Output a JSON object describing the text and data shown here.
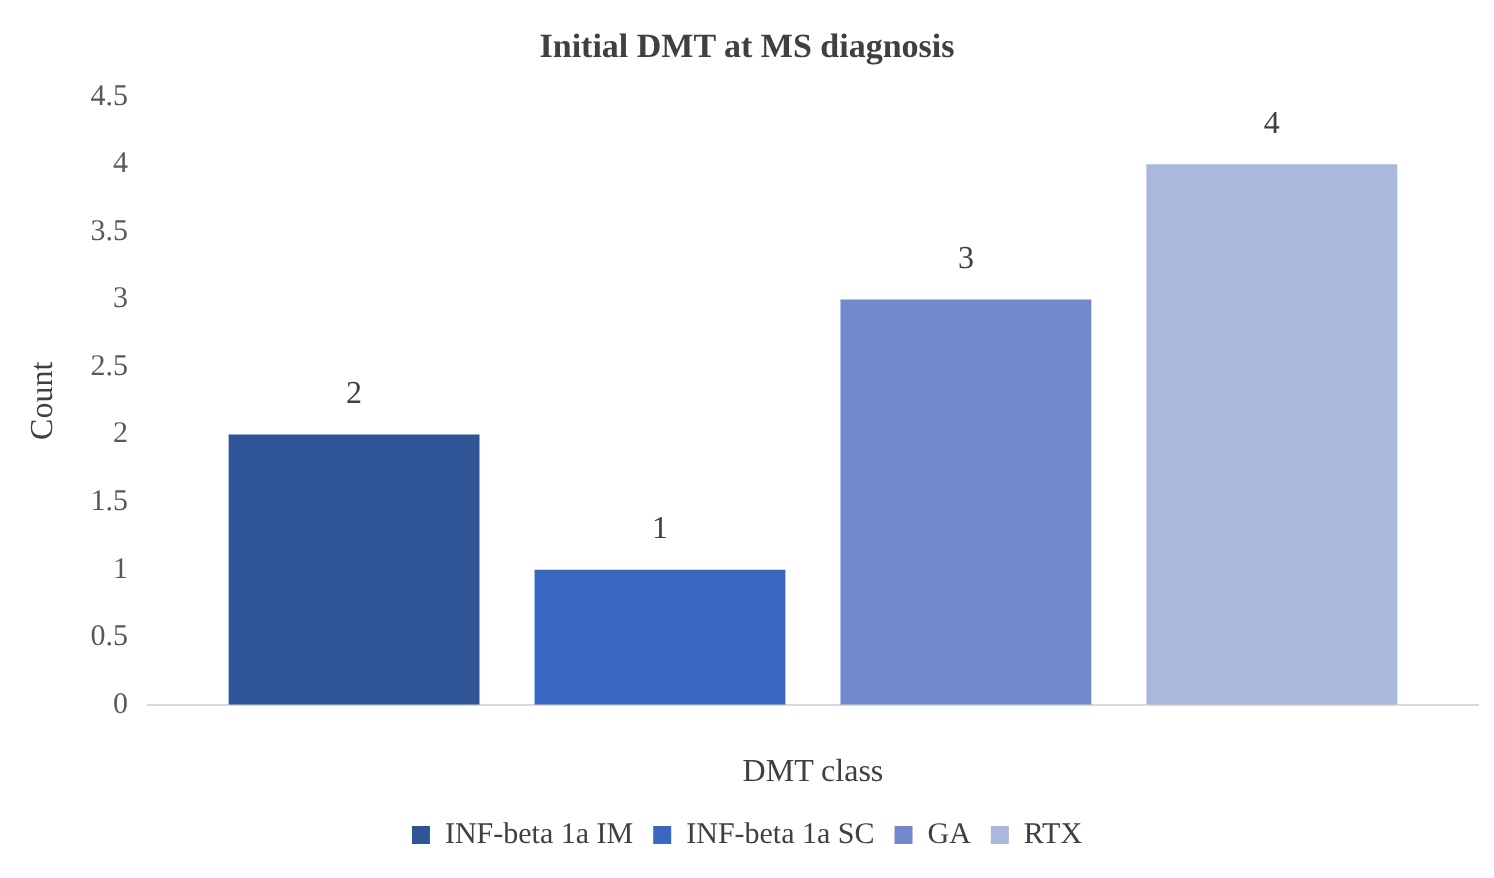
{
  "chart_data": {
    "type": "bar",
    "title": "Initial DMT at MS diagnosis",
    "xlabel": "DMT class",
    "ylabel": "Count",
    "categories": [
      null
    ],
    "series": [
      {
        "name": "INF-beta 1a IM",
        "color": "#2f5597",
        "values": [
          2
        ]
      },
      {
        "name": "INF-beta 1a SC",
        "color": "#3a68c0",
        "values": [
          1
        ]
      },
      {
        "name": "GA",
        "color": "#7189cc",
        "values": [
          3
        ]
      },
      {
        "name": "RTX",
        "color": "#a9b8dc",
        "values": [
          4
        ]
      }
    ],
    "ylim": [
      0,
      4.5
    ],
    "yticks": [
      0,
      0.5,
      1,
      1.5,
      2,
      2.5,
      3,
      3.5,
      4,
      4.5
    ],
    "grid": false,
    "legend": "bottom",
    "data_labels": true
  }
}
